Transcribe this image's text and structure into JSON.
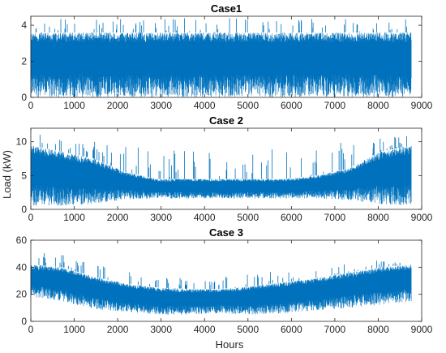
{
  "colors": {
    "series": "#0072bd",
    "axis": "#262626",
    "background": "#ffffff"
  },
  "figure": {
    "ylabel": "Load (kW)",
    "xlabel": "Hours"
  },
  "chart_data": [
    {
      "type": "line",
      "title": "Case1",
      "xlim": [
        0,
        9000
      ],
      "ylim": [
        0,
        4.5
      ],
      "xticks": [
        0,
        1000,
        2000,
        3000,
        4000,
        5000,
        6000,
        7000,
        8000,
        9000
      ],
      "yticks": [
        0,
        2,
        4
      ],
      "x_range": [
        0,
        8760
      ],
      "series": [
        {
          "envelope": {
            "min": 0,
            "typical_max": 3.6,
            "peak_max": 4.4
          },
          "description_values": {
            "mean_level": 1.8
          }
        }
      ]
    },
    {
      "type": "line",
      "title": "Case 2",
      "xlim": [
        0,
        9000
      ],
      "ylim": [
        0,
        12
      ],
      "xticks": [
        0,
        1000,
        2000,
        3000,
        4000,
        5000,
        6000,
        7000,
        8000,
        9000
      ],
      "yticks": [
        0,
        5,
        10
      ],
      "x_range": [
        0,
        8760
      ],
      "series": [
        {
          "envelope_by_month": {
            "x": [
              0,
              730,
              1460,
              2190,
              2920,
              3650,
              4380,
              5110,
              5840,
              6570,
              7300,
              8030,
              8760
            ],
            "low": [
              0.5,
              0.5,
              0.8,
              1.5,
              1.6,
              1.6,
              1.6,
              1.6,
              1.6,
              1.6,
              1.4,
              0.8,
              0.5
            ],
            "high": [
              9.5,
              8.5,
              7.5,
              5.5,
              4.5,
              4.5,
              4.5,
              4.5,
              4.5,
              5.0,
              6.0,
              8.5,
              9.5
            ],
            "peak": [
              11.5,
              10.5,
              10,
              9.5,
              9,
              9,
              8.5,
              9,
              9,
              9.5,
              10,
              10.5,
              11
            ]
          }
        }
      ]
    },
    {
      "type": "line",
      "title": "Case 3",
      "xlim": [
        0,
        9000
      ],
      "ylim": [
        0,
        60
      ],
      "xticks": [
        0,
        1000,
        2000,
        3000,
        4000,
        5000,
        6000,
        7000,
        8000,
        9000
      ],
      "yticks": [
        0,
        20,
        40,
        60
      ],
      "x_range": [
        0,
        8760
      ],
      "series": [
        {
          "envelope_by_month": {
            "x": [
              0,
              730,
              1460,
              2190,
              2920,
              3650,
              4380,
              5110,
              5840,
              6570,
              7300,
              8030,
              8760
            ],
            "low": [
              18,
              15,
              9,
              7,
              5,
              5,
              6,
              5,
              6,
              8,
              10,
              12,
              15
            ],
            "high": [
              42,
              40,
              33,
              28,
              25,
              24,
              24,
              26,
              29,
              32,
              36,
              40,
              42
            ],
            "peak": [
              51,
              50,
              42,
              38,
              33,
              32,
              33,
              36,
              38,
              40,
              45,
              45,
              43
            ]
          }
        }
      ]
    }
  ]
}
